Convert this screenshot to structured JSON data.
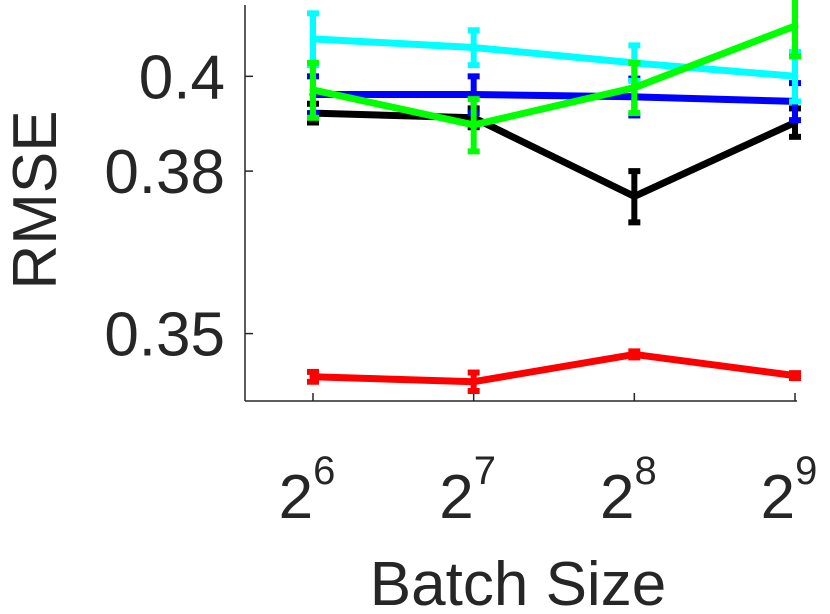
{
  "chart_data": {
    "type": "line",
    "title": "",
    "xlabel": "Batch Size",
    "ylabel": "RMSE",
    "x": [
      64,
      128,
      256,
      512
    ],
    "x_scale": "log2",
    "x_tick_labels": [
      {
        "base": "2",
        "exp": "6"
      },
      {
        "base": "2",
        "exp": "7"
      },
      {
        "base": "2",
        "exp": "8"
      },
      {
        "base": "2",
        "exp": "9"
      }
    ],
    "y_scale": "reciprocal",
    "ylim": [
      0.3389,
      0.4165
    ],
    "y_ticks": [
      0.35,
      0.38,
      0.4
    ],
    "y_tick_labels": [
      "0.35",
      "0.38",
      "0.4"
    ],
    "grid": false,
    "series": [
      {
        "color": "#ff0000",
        "values": [
          0.3428,
          0.342,
          0.3465,
          0.343
        ],
        "errors": [
          0.0008,
          0.0015,
          0.0005,
          0.0004
        ]
      },
      {
        "color": "#000000",
        "values": [
          0.392,
          0.391,
          0.375,
          0.39
        ],
        "errors": [
          0.002,
          0.002,
          0.005,
          0.003
        ]
      },
      {
        "color": "#0000ff",
        "values": [
          0.396,
          0.396,
          0.3955,
          0.3945
        ],
        "errors": [
          0.004,
          0.004,
          0.004,
          0.004
        ]
      },
      {
        "color": "#00ffff",
        "values": [
          0.4085,
          0.4065,
          0.403,
          0.4
        ],
        "errors": [
          0.006,
          0.004,
          0.004,
          0.0055
        ]
      },
      {
        "color": "#00ff00",
        "values": [
          0.397,
          0.3895,
          0.3975,
          0.4115
        ],
        "errors": [
          0.006,
          0.0055,
          0.0055,
          0.007
        ]
      }
    ]
  }
}
